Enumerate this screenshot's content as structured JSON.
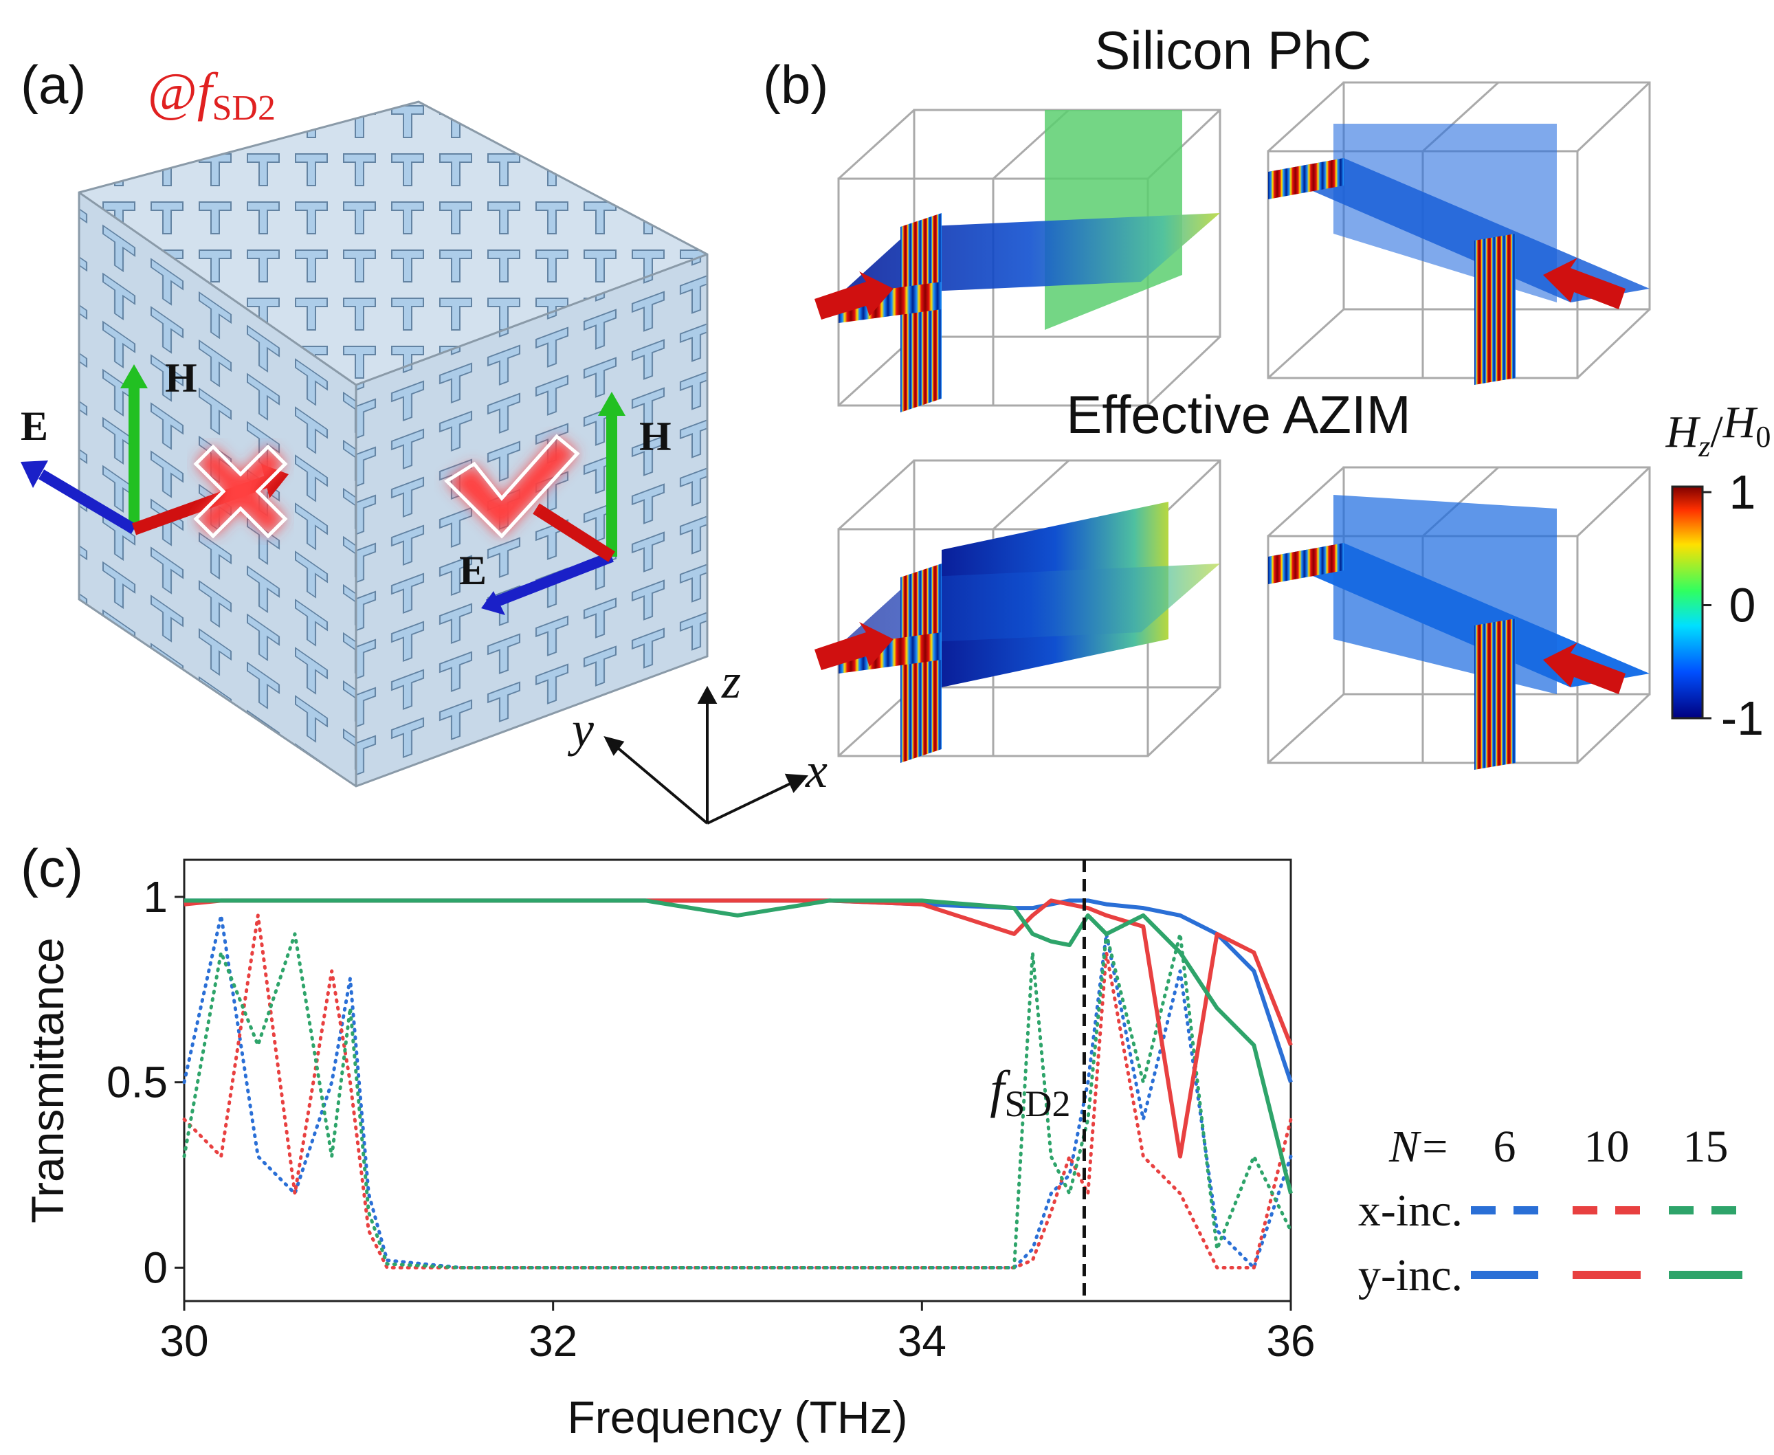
{
  "panel_labels": [
    "(a)",
    "(b)",
    "(c)"
  ],
  "panel_a": {
    "condition": {
      "prefix": "@",
      "symbol": "f",
      "subscript": "SD2"
    },
    "field_labels": [
      "H",
      "E",
      "H",
      "E"
    ],
    "axes": [
      "x",
      "y",
      "z"
    ]
  },
  "panel_b": {
    "rows": [
      "Silicon PhC",
      "Effective AZIM"
    ],
    "colorbar": {
      "label": [
        "H",
        "z",
        "/",
        "H",
        "0"
      ],
      "lim": [
        -1,
        1
      ],
      "ticks": [
        1,
        0,
        -1
      ]
    }
  },
  "chart_data": {
    "type": "line",
    "xlabel": "Frequency (THz)",
    "ylabel": "Transmittance",
    "xlim": [
      30,
      36
    ],
    "ylim": [
      -0.09,
      1.1
    ],
    "xticks": [
      30,
      32,
      34,
      36
    ],
    "yticks": [
      0,
      0.5,
      1
    ],
    "x": [
      30,
      30.2,
      30.4,
      30.6,
      30.8,
      30.9,
      31,
      31.1,
      31.5,
      32,
      32.5,
      33,
      33.5,
      34,
      34.5,
      34.6,
      34.7,
      34.8,
      34.9,
      35,
      35.2,
      35.4,
      35.6,
      35.8,
      36
    ],
    "series": [
      {
        "color": "#2a6fd6",
        "style": "dotted",
        "values": [
          0.5,
          0.95,
          0.3,
          0.2,
          0.5,
          0.78,
          0.2,
          0.02,
          0,
          0,
          0,
          0,
          0,
          0,
          0,
          0.05,
          0.2,
          0.25,
          0.5,
          0.9,
          0.4,
          0.8,
          0.1,
          0,
          0.3
        ]
      },
      {
        "color": "#e84040",
        "style": "dotted",
        "values": [
          0.4,
          0.3,
          0.95,
          0.2,
          0.8,
          0.5,
          0.1,
          0,
          0,
          0,
          0,
          0,
          0,
          0,
          0,
          0.02,
          0.15,
          0.3,
          0.2,
          0.85,
          0.3,
          0.2,
          0,
          0,
          0.4
        ]
      },
      {
        "color": "#2ea46a",
        "style": "dotted",
        "values": [
          0.3,
          0.85,
          0.6,
          0.9,
          0.3,
          0.7,
          0.15,
          0.01,
          0,
          0,
          0,
          0,
          0,
          0,
          0,
          0.85,
          0.3,
          0.2,
          0.4,
          0.9,
          0.5,
          0.9,
          0.05,
          0.3,
          0.1
        ]
      },
      {
        "color": "#2a6fd6",
        "style": "solid",
        "values": [
          0.99,
          0.99,
          0.99,
          0.99,
          0.99,
          0.99,
          0.99,
          0.99,
          0.99,
          0.99,
          0.99,
          0.99,
          0.99,
          0.98,
          0.97,
          0.97,
          0.98,
          0.99,
          0.99,
          0.98,
          0.97,
          0.95,
          0.9,
          0.8,
          0.5
        ]
      },
      {
        "color": "#e84040",
        "style": "solid",
        "values": [
          0.98,
          0.99,
          0.99,
          0.99,
          0.99,
          0.99,
          0.99,
          0.99,
          0.99,
          0.99,
          0.99,
          0.99,
          0.99,
          0.98,
          0.9,
          0.95,
          0.99,
          0.98,
          0.97,
          0.95,
          0.92,
          0.3,
          0.9,
          0.85,
          0.6
        ]
      },
      {
        "color": "#2ea46a",
        "style": "solid",
        "values": [
          0.99,
          0.99,
          0.99,
          0.99,
          0.99,
          0.99,
          0.99,
          0.99,
          0.99,
          0.99,
          0.99,
          0.95,
          0.99,
          0.99,
          0.97,
          0.9,
          0.88,
          0.87,
          0.95,
          0.9,
          0.95,
          0.85,
          0.7,
          0.6,
          0.2
        ]
      }
    ],
    "annotation": {
      "x": 34.88,
      "symbol": "f",
      "subscript": "SD2"
    },
    "legend": {
      "title": "N=",
      "columns": [
        "6",
        "10",
        "15"
      ],
      "rows": [
        "x-inc.",
        "y-inc."
      ]
    }
  }
}
